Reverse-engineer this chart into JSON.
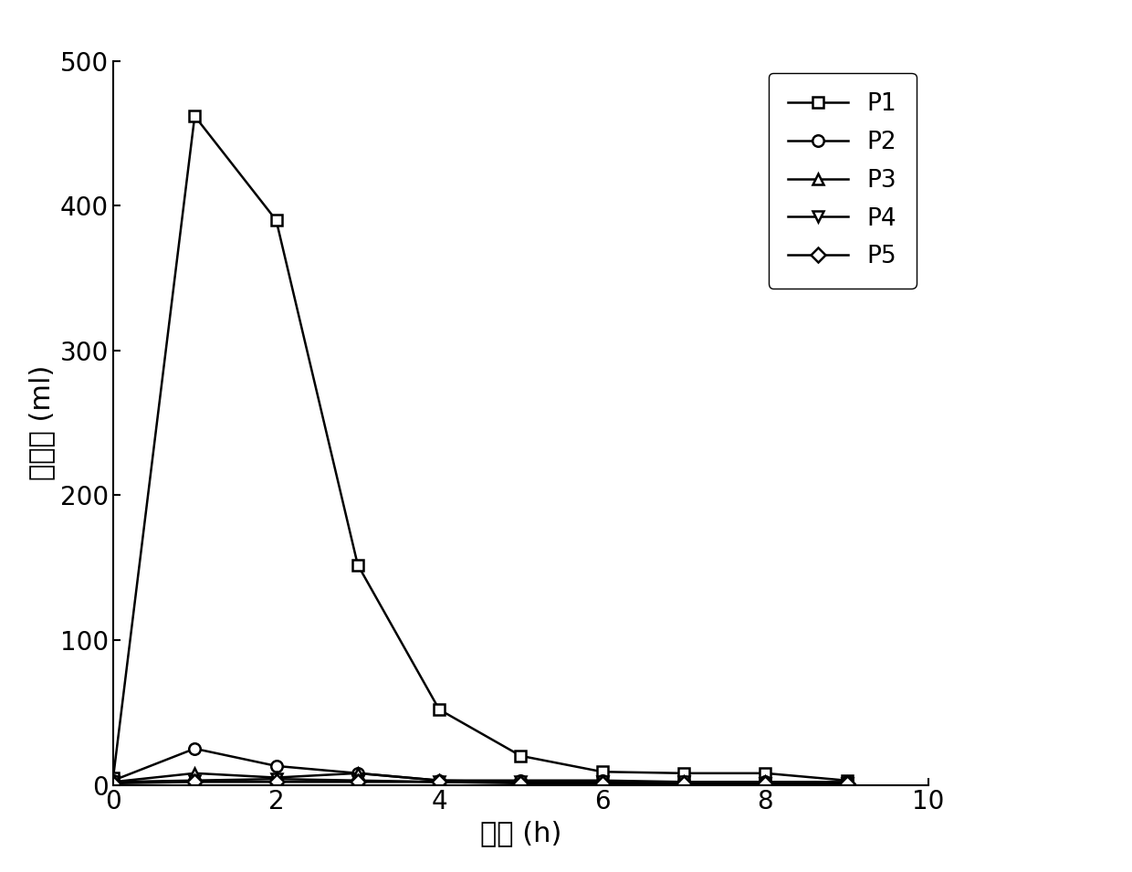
{
  "title": "",
  "xlabel": "时间 (h)",
  "ylabel": "产氢量 (ml)",
  "xlim": [
    0,
    10
  ],
  "ylim": [
    0,
    500
  ],
  "xticks": [
    0,
    2,
    4,
    6,
    8,
    10
  ],
  "yticks": [
    0,
    100,
    200,
    300,
    400,
    500
  ],
  "series": {
    "P1": {
      "x": [
        0,
        1,
        2,
        3,
        4,
        5,
        6,
        7,
        8,
        9
      ],
      "y": [
        5,
        462,
        390,
        152,
        52,
        20,
        9,
        8,
        8,
        3
      ],
      "marker": "s",
      "markersize": 9,
      "linewidth": 1.8
    },
    "P2": {
      "x": [
        0,
        1,
        2,
        3,
        4,
        5,
        6,
        7,
        8,
        9
      ],
      "y": [
        3,
        25,
        13,
        8,
        3,
        3,
        3,
        2,
        2,
        2
      ],
      "marker": "o",
      "markersize": 9,
      "linewidth": 1.8
    },
    "P3": {
      "x": [
        0,
        1,
        2,
        3,
        4,
        5,
        6,
        7,
        8,
        9
      ],
      "y": [
        2,
        8,
        5,
        8,
        3,
        2,
        2,
        2,
        2,
        1
      ],
      "marker": "^",
      "markersize": 9,
      "linewidth": 1.8
    },
    "P4": {
      "x": [
        0,
        1,
        2,
        3,
        4,
        5,
        6,
        7,
        8,
        9
      ],
      "y": [
        2,
        3,
        4,
        3,
        2,
        2,
        2,
        2,
        1,
        1
      ],
      "marker": "v",
      "markersize": 9,
      "linewidth": 1.8
    },
    "P5": {
      "x": [
        0,
        1,
        2,
        3,
        4,
        5,
        6,
        7,
        8,
        9
      ],
      "y": [
        1,
        2,
        2,
        2,
        2,
        1,
        1,
        1,
        1,
        1
      ],
      "marker": "D",
      "markersize": 8,
      "linewidth": 1.8
    }
  },
  "legend_loc": "upper right",
  "background_color": "#ffffff",
  "axes_linewidth": 1.5,
  "tick_fontsize": 20,
  "label_fontsize": 22,
  "legend_fontsize": 19
}
